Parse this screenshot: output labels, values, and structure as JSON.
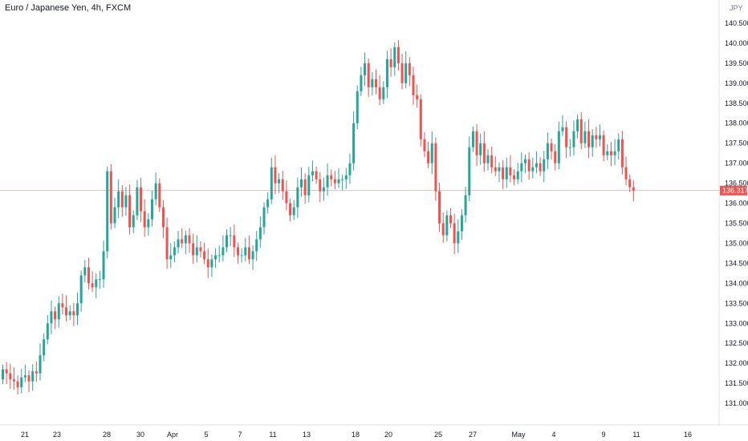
{
  "header": {
    "symbol_title": "Euro / Japanese Yen, 4h, FXCM",
    "currency": "JPY"
  },
  "colors": {
    "up": "#26a69a",
    "down": "#ef5350",
    "axis_text": "#131722",
    "last_price_line": "#ef5350"
  },
  "chart_data": {
    "type": "candlestick",
    "title": "Euro / Japanese Yen, 4h, FXCM",
    "ylabel": "JPY",
    "ylim": [
      130.3,
      141.0
    ],
    "y_ticks": [
      "131.000",
      "131.500",
      "132.000",
      "132.500",
      "133.000",
      "133.500",
      "134.000",
      "134.500",
      "135.000",
      "135.500",
      "136.000",
      "136.500",
      "137.000",
      "137.500",
      "138.000",
      "138.500",
      "139.000",
      "139.500",
      "140.000",
      "140.500"
    ],
    "x_ticks": [
      "21",
      "23",
      "28",
      "30",
      "Apr",
      "5",
      "7",
      "11",
      "13",
      "18",
      "20",
      "25",
      "27",
      "May",
      "4",
      "9",
      "11",
      "16"
    ],
    "last_price": "136.317",
    "series_close": [
      131.85,
      131.75,
      131.6,
      131.55,
      131.4,
      131.65,
      131.7,
      131.55,
      131.8,
      131.75,
      132.2,
      132.6,
      133.0,
      133.3,
      133.1,
      133.5,
      133.4,
      133.2,
      133.3,
      133.2,
      133.5,
      134.2,
      134.4,
      134.0,
      133.9,
      134.1,
      134.1,
      134.8,
      136.8,
      135.5,
      135.9,
      136.3,
      135.9,
      136.2,
      135.4,
      135.7,
      136.4,
      135.8,
      135.4,
      135.6,
      136.1,
      136.5,
      135.9,
      135.4,
      134.6,
      134.7,
      134.9,
      135.1,
      135.0,
      135.2,
      135.0,
      134.7,
      134.9,
      134.8,
      134.6,
      134.4,
      134.6,
      134.7,
      134.7,
      134.9,
      135.2,
      135.2,
      134.9,
      134.7,
      134.7,
      134.9,
      134.6,
      134.8,
      135.1,
      135.4,
      135.9,
      136.1,
      136.9,
      136.5,
      136.6,
      136.3,
      136.0,
      135.7,
      135.9,
      136.4,
      136.6,
      136.2,
      136.7,
      136.8,
      136.6,
      136.3,
      136.4,
      136.7,
      136.6,
      136.5,
      136.6,
      136.6,
      136.7,
      137.0,
      138.0,
      138.8,
      139.2,
      139.5,
      138.9,
      139.1,
      138.9,
      138.6,
      138.9,
      139.6,
      139.4,
      139.9,
      139.5,
      139.0,
      139.5,
      139.2,
      138.7,
      138.6,
      137.6,
      137.3,
      137.0,
      137.5,
      136.3,
      135.5,
      135.2,
      135.7,
      135.5,
      135.0,
      135.3,
      135.7,
      136.2,
      137.4,
      137.8,
      137.2,
      137.5,
      137.0,
      137.2,
      136.9,
      136.8,
      136.9,
      136.6,
      136.9,
      136.7,
      136.6,
      136.8,
      137.0,
      137.1,
      136.8,
      136.9,
      137.0,
      136.8,
      137.1,
      137.5,
      137.3,
      137.0,
      137.8,
      137.9,
      137.4,
      137.4,
      137.8,
      138.1,
      137.5,
      137.8,
      137.4,
      137.7,
      137.6,
      137.7,
      137.2,
      137.3,
      137.2,
      137.3,
      137.6,
      136.9,
      136.6,
      136.4,
      136.32
    ]
  }
}
